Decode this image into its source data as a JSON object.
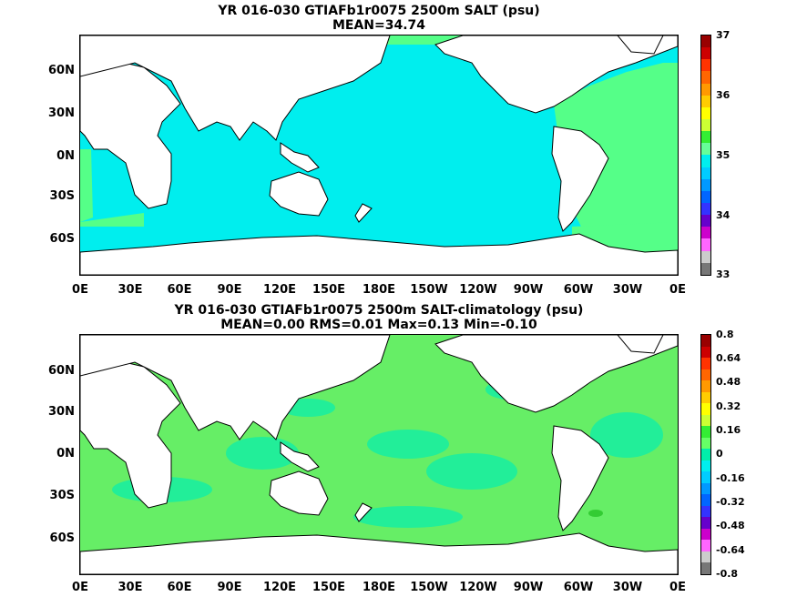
{
  "panels": [
    {
      "title1": "YR 016-030 GTIAFb1r0075 2500m SALT (psu)",
      "title2": "MEAN=34.74",
      "ocean_color": "#00eeee",
      "secondary_color": "#55ff88",
      "colorbar_labels": [
        "37",
        "36",
        "35",
        "34",
        "33"
      ],
      "colorbar_colors": [
        "#990000",
        "#cc0000",
        "#ff3300",
        "#ff6600",
        "#ff9900",
        "#ffcc00",
        "#ffff00",
        "#ccff33",
        "#33ee33",
        "#66ff99",
        "#00eeee",
        "#00ccff",
        "#0099ff",
        "#0066ff",
        "#3333ff",
        "#6600cc",
        "#cc00cc",
        "#ff66ff",
        "#cccccc",
        "#777777"
      ]
    },
    {
      "title1": "YR 016-030 GTIAFb1r0075 2500m SALT-climatology (psu)",
      "title2": "MEAN=0.00   RMS=0.01   Max=0.13   Min=-0.10",
      "ocean_color": "#66ee66",
      "secondary_color": "#22ee99",
      "colorbar_labels": [
        "0.8",
        "0.64",
        "0.48",
        "0.32",
        "0.16",
        "0",
        "-0.16",
        "-0.32",
        "-0.48",
        "-0.64",
        "-0.8"
      ],
      "colorbar_colors": [
        "#990000",
        "#cc0000",
        "#ff3300",
        "#ff6600",
        "#ff9900",
        "#ffcc00",
        "#ffff00",
        "#ccff33",
        "#33ee33",
        "#66ff66",
        "#00eeaa",
        "#00eeee",
        "#00ccff",
        "#0099ff",
        "#0066ff",
        "#3333ff",
        "#6600cc",
        "#cc00cc",
        "#ff66ff",
        "#cccccc",
        "#777777"
      ]
    }
  ],
  "lat_labels": [
    "60N",
    "30N",
    "0N",
    "30S",
    "60S"
  ],
  "lon_labels": [
    "0E",
    "30E",
    "60E",
    "90E",
    "120E",
    "150E",
    "180E",
    "150W",
    "120W",
    "90W",
    "60W",
    "30W",
    "0E"
  ]
}
